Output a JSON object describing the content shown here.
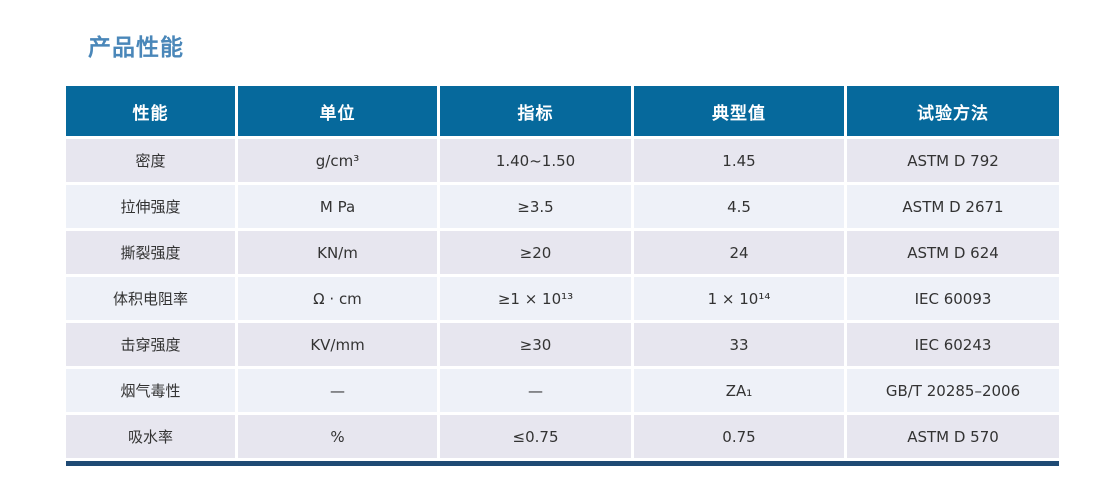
{
  "page": {
    "title": "产品性能"
  },
  "table": {
    "headers": [
      "性能",
      "单位",
      "指标",
      "典型值",
      "试验方法"
    ],
    "rows": [
      [
        "密度",
        "g/cm³",
        "1.40~1.50",
        "1.45",
        "ASTM D 792"
      ],
      [
        "拉伸强度",
        "M Pa",
        "≥3.5",
        "4.5",
        "ASTM D 2671"
      ],
      [
        "撕裂强度",
        "KN/m",
        "≥20",
        "24",
        "ASTM D 624"
      ],
      [
        "体积电阻率",
        "Ω · cm",
        "≥1 × 10¹³",
        "1 × 10¹⁴",
        "IEC 60093"
      ],
      [
        "击穿强度",
        "KV/mm",
        "≥30",
        "33",
        "IEC 60243"
      ],
      [
        "烟气毒性",
        "—",
        "—",
        "ZA₁",
        "GB/T 20285–2006"
      ],
      [
        "吸水率",
        "%",
        "≤0.75",
        "0.75",
        "ASTM D 570"
      ]
    ],
    "colors": {
      "title_text": "#4a87b9",
      "header_bg": "#06699c",
      "header_text": "#ffffff",
      "row_odd_bg": "#e7e6ef",
      "row_even_bg": "#eef1f8",
      "cell_text": "#333333",
      "bottom_rule": "#1f4a74"
    }
  }
}
